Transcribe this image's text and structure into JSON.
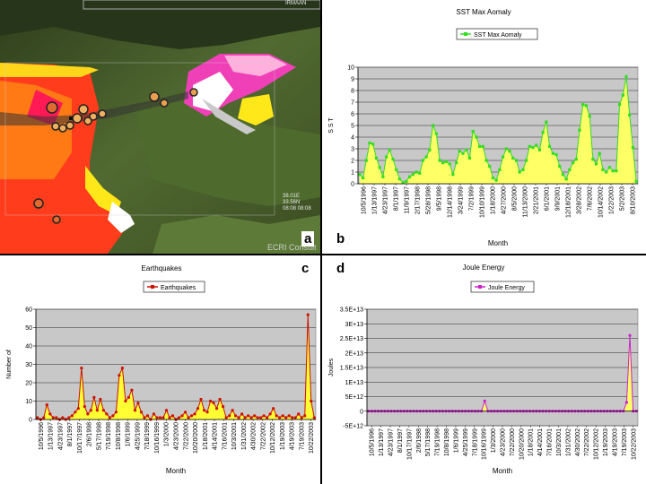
{
  "labels": {
    "a": "a",
    "b": "b",
    "c": "c",
    "d": "d"
  },
  "map": {
    "watermark": "ECRI Consult",
    "coord_top_right": "IRMAAN",
    "coord_lat": "38.01E",
    "coord_lon": "33.56N",
    "coord_time": "08:08 08:08"
  },
  "colors": {
    "sst_series": "#33dd22",
    "sst_fill": "#ffff66",
    "eq_series": "#cc1100",
    "eq_fill": "#ffff33",
    "joule_series": "#cc22cc",
    "joule_fill": "#ffff66",
    "plot_bg": "#c8c8c8"
  },
  "chart_data": [
    {
      "id": "sst",
      "type": "area",
      "title": "SST Max Aomaly",
      "legend": "SST Max Aomaly",
      "xlabel": "Month",
      "ylabel": "S S T",
      "ylim": [
        0,
        10
      ],
      "yticks": [
        "0",
        "1",
        "2",
        "3",
        "4",
        "5",
        "6",
        "7",
        "8",
        "9",
        "10"
      ],
      "xticks": [
        "10/5/1996",
        "1/13/1997",
        "4/23/1997",
        "8/1/1997",
        "11/9/1997",
        "2/17/1998",
        "5/28/1998",
        "9/5/1998",
        "12/14/1998",
        "3/24/1999",
        "7/2/1999",
        "10/10/1999",
        "1/18/2000",
        "4/27/2000",
        "8/5/2000",
        "11/13/2000",
        "2/21/2001",
        "6/1/2001",
        "9/9/2001",
        "12/18/2001",
        "3/28/2002",
        "7/6/2002",
        "10/14/2002",
        "1/22/2003",
        "5/2/2003",
        "8/10/2003"
      ],
      "values": [
        0.8,
        0.5,
        2.0,
        3.5,
        3.4,
        2.2,
        1.4,
        0.6,
        2.3,
        2.9,
        2.1,
        1.2,
        0.4,
        0.1,
        0.2,
        0.6,
        0.8,
        1.0,
        0.9,
        2.0,
        2.3,
        2.9,
        5.0,
        4.3,
        2.0,
        1.8,
        1.9,
        1.7,
        0.8,
        1.8,
        2.8,
        2.6,
        2.9,
        2.2,
        4.5,
        4.0,
        3.2,
        3.2,
        2.0,
        1.5,
        0.5,
        0.3,
        1.2,
        2.3,
        3.0,
        2.8,
        2.2,
        2.0,
        1.0,
        1.2,
        2.0,
        3.2,
        3.1,
        3.3,
        2.9,
        4.4,
        5.3,
        3.2,
        2.6,
        2.5,
        1.5,
        0.8,
        0.4,
        1.2,
        1.8,
        2.1,
        4.6,
        6.8,
        6.7,
        5.8,
        2.1,
        1.7,
        2.6,
        1.2,
        1.0,
        1.4,
        1.1,
        1.1,
        6.8,
        7.6,
        9.2,
        5.9,
        3.1,
        0.2
      ]
    },
    {
      "id": "earthquakes",
      "type": "area",
      "title": "Earthquakes",
      "legend": "Earthquakes",
      "xlabel": "Month",
      "ylabel": "Number of",
      "ylim": [
        0,
        60
      ],
      "yticks": [
        "0",
        "10",
        "20",
        "30",
        "40",
        "50",
        "60"
      ],
      "xticks": [
        "10/5/1996",
        "1/13/1997",
        "4/23/1997",
        "8/1/1997",
        "10/17/1997",
        "2/6/1998",
        "5/17/1998",
        "7/19/1998",
        "10/8/1998",
        "1/6/1999",
        "4/25/1999",
        "7/18/1999",
        "10/16/1999",
        "1/3/2000",
        "4/23/2000",
        "7/22/2000",
        "10/20/2000",
        "1/18/2001",
        "4/14/2001",
        "7/16/2001",
        "10/3/2001",
        "1/31/2002",
        "4/30/2002",
        "7/22/2002",
        "10/12/2002",
        "1/19/2003",
        "4/19/2003",
        "7/19/2003",
        "10/22/2003"
      ],
      "values": [
        1,
        0,
        1,
        8,
        3,
        1,
        1,
        0,
        1,
        0,
        1,
        2,
        4,
        6,
        28,
        7,
        3,
        5,
        12,
        5,
        11,
        5,
        3,
        1,
        2,
        4,
        24,
        28,
        10,
        12,
        16,
        5,
        9,
        4,
        1,
        2,
        0,
        3,
        1,
        1,
        1,
        5,
        1,
        2,
        0,
        1,
        2,
        4,
        1,
        2,
        3,
        6,
        11,
        5,
        4,
        10,
        9,
        6,
        11,
        7,
        1,
        2,
        5,
        2,
        1,
        3,
        1,
        2,
        1,
        2,
        1,
        1,
        2,
        1,
        3,
        6,
        2,
        1,
        2,
        1,
        2,
        1,
        1,
        3,
        1,
        2,
        57,
        10,
        1
      ]
    },
    {
      "id": "joule",
      "type": "area",
      "title": "Joule Energy",
      "legend": "Joule Energy",
      "xlabel": "Month",
      "ylabel": "Joules",
      "ylim": [
        -5000000000000.0,
        35000000000000.0
      ],
      "yticks": [
        "-5E+12",
        "0",
        "5E+12",
        "1E+13",
        "1.5E+13",
        "2E+13",
        "2.5E+13",
        "3E+13",
        "3.5E+13"
      ],
      "xticks": [
        "10/5/1996",
        "1/13/1997",
        "4/23/1997",
        "8/1/1997",
        "10/17/1997",
        "2/6/1998",
        "5/17/1998",
        "7/19/1998",
        "10/8/1998",
        "1/6/1999",
        "4/25/1999",
        "7/18/1999",
        "10/16/1999",
        "1/3/2000",
        "4/23/2000",
        "7/22/2000",
        "10/20/2000",
        "1/18/2001",
        "4/14/2001",
        "7/16/2001",
        "10/3/2001",
        "1/31/2002",
        "4/30/2002",
        "7/22/2002",
        "10/12/2002",
        "1/19/2003",
        "4/19/2003",
        "7/19/2003",
        "10/22/2003"
      ],
      "values": [
        0,
        0,
        0,
        0,
        0,
        0,
        0,
        0,
        0,
        0,
        0,
        0,
        0,
        0,
        0,
        0,
        0,
        0,
        0,
        0,
        0,
        0,
        0,
        0,
        0,
        0,
        0,
        0,
        0,
        0,
        0,
        0,
        0,
        0,
        0,
        0,
        3500000000000.0,
        0,
        0,
        0,
        0,
        0,
        0,
        0,
        0,
        0,
        0,
        0,
        0,
        0,
        0,
        0,
        0,
        0,
        0,
        0,
        0,
        0,
        0,
        0,
        0,
        0,
        0,
        0,
        0,
        0,
        0,
        0,
        0,
        0,
        0,
        0,
        0,
        0,
        0,
        0,
        0,
        0,
        0,
        0,
        3000000000000.0,
        26000000000000.0,
        0,
        0
      ]
    }
  ]
}
